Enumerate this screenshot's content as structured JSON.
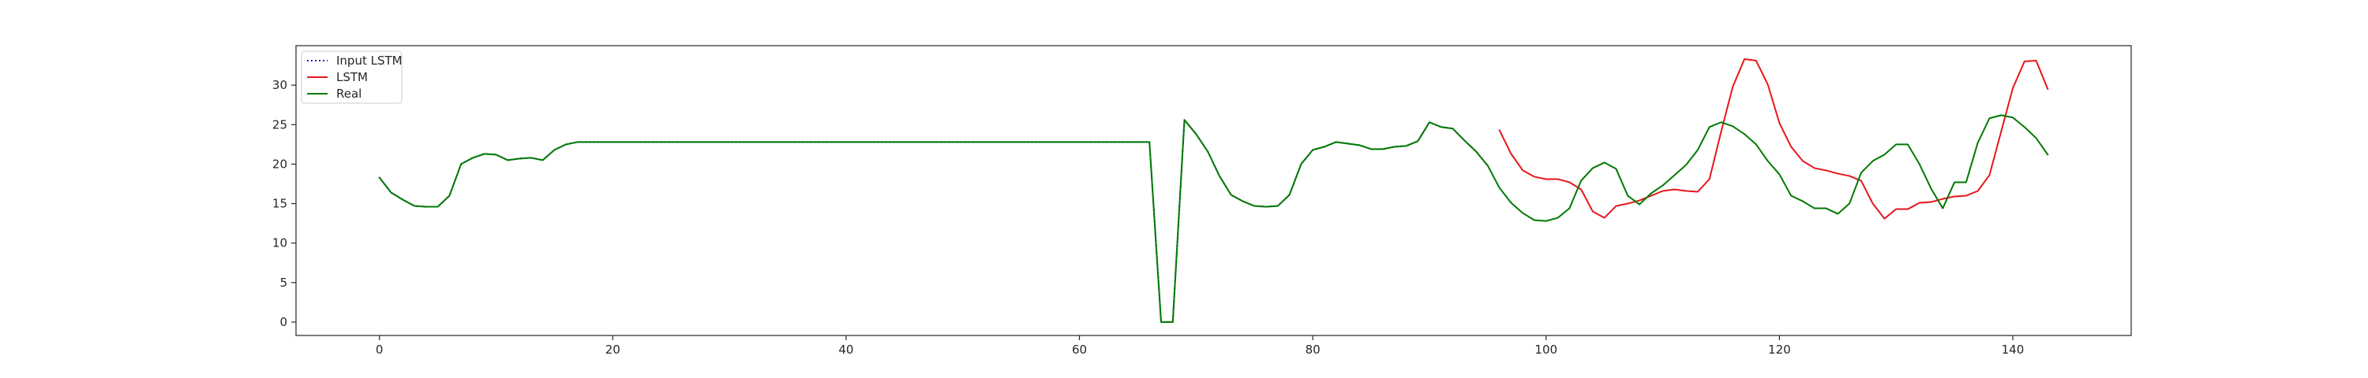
{
  "chart_data": {
    "type": "line",
    "title": "",
    "xlabel": "",
    "ylabel": "",
    "xlim": [
      -7.15,
      150.15
    ],
    "ylim": [
      -1.7,
      35.0
    ],
    "xticks": [
      0,
      20,
      40,
      60,
      80,
      100,
      120,
      140
    ],
    "yticks": [
      0,
      5,
      10,
      15,
      20,
      25,
      30
    ],
    "grid": false,
    "legend_position": "top-left",
    "series": [
      {
        "name": "Input LSTM",
        "color": "#1f1fbf",
        "style": "dotted",
        "x_start": 0,
        "values": [
          18.3,
          16.4,
          15.5,
          14.7,
          14.6,
          14.6,
          16.0,
          20.0,
          20.8,
          21.3,
          21.2,
          20.5,
          20.7,
          20.8,
          20.5,
          21.8,
          22.5,
          22.8,
          22.8,
          22.8,
          22.8,
          22.8,
          22.8,
          22.8,
          22.8,
          22.8,
          22.8,
          22.8,
          22.8,
          22.8,
          22.8,
          22.8,
          22.8,
          22.8,
          22.8,
          22.8,
          22.8,
          22.8,
          22.8,
          22.8,
          22.8,
          22.8,
          22.8,
          22.8,
          22.8,
          22.8,
          22.8,
          22.8,
          22.8,
          22.8,
          22.8,
          22.8,
          22.8,
          22.8,
          22.8,
          22.8,
          22.8,
          22.8,
          22.8,
          22.8,
          22.8,
          22.8,
          22.8,
          22.8,
          22.8,
          22.8,
          22.8,
          0.0,
          0.0,
          25.6,
          23.8,
          21.6,
          18.5,
          16.1,
          15.3,
          14.7,
          14.6,
          14.7,
          16.1,
          20.0,
          21.8,
          22.2,
          22.8,
          22.6,
          22.4,
          21.9,
          21.9,
          22.2,
          22.3,
          22.9,
          25.3,
          24.7,
          24.5,
          23.0,
          21.6,
          19.8
        ]
      },
      {
        "name": "LSTM",
        "color": "#e8161c",
        "style": "solid",
        "x_start": 96,
        "values": [
          24.3,
          21.3,
          19.2,
          18.4,
          18.1,
          18.1,
          17.7,
          16.8,
          14.0,
          13.2,
          14.7,
          15.0,
          15.4,
          16.0,
          16.6,
          16.8,
          16.6,
          16.5,
          18.1,
          24.1,
          29.8,
          33.3,
          33.1,
          30.1,
          25.2,
          22.2,
          20.4,
          19.5,
          19.2,
          18.8,
          18.5,
          17.9,
          15.0,
          13.1,
          14.3,
          14.3,
          15.1,
          15.2,
          15.6,
          15.9,
          16.0,
          16.6,
          18.6,
          24.1,
          29.6,
          33.0,
          33.1,
          29.5
        ]
      },
      {
        "name": "Real",
        "color": "#007a00",
        "style": "solid",
        "x_start": 0,
        "values": [
          18.3,
          16.4,
          15.5,
          14.7,
          14.6,
          14.6,
          16.0,
          20.0,
          20.8,
          21.3,
          21.2,
          20.5,
          20.7,
          20.8,
          20.5,
          21.8,
          22.5,
          22.8,
          22.8,
          22.8,
          22.8,
          22.8,
          22.8,
          22.8,
          22.8,
          22.8,
          22.8,
          22.8,
          22.8,
          22.8,
          22.8,
          22.8,
          22.8,
          22.8,
          22.8,
          22.8,
          22.8,
          22.8,
          22.8,
          22.8,
          22.8,
          22.8,
          22.8,
          22.8,
          22.8,
          22.8,
          22.8,
          22.8,
          22.8,
          22.8,
          22.8,
          22.8,
          22.8,
          22.8,
          22.8,
          22.8,
          22.8,
          22.8,
          22.8,
          22.8,
          22.8,
          22.8,
          22.8,
          22.8,
          22.8,
          22.8,
          22.8,
          0.0,
          0.0,
          25.6,
          23.8,
          21.6,
          18.5,
          16.1,
          15.3,
          14.7,
          14.6,
          14.7,
          16.1,
          20.0,
          21.8,
          22.2,
          22.8,
          22.6,
          22.4,
          21.9,
          21.9,
          22.2,
          22.3,
          22.9,
          25.3,
          24.7,
          24.5,
          23.0,
          21.6,
          19.8,
          17.0,
          15.1,
          13.8,
          12.9,
          12.8,
          13.2,
          14.4,
          17.9,
          19.5,
          20.2,
          19.4,
          16.0,
          14.9,
          16.3,
          17.3,
          18.6,
          19.9,
          21.8,
          24.7,
          25.3,
          24.8,
          23.8,
          22.5,
          20.4,
          18.7,
          16.0,
          15.3,
          14.4,
          14.4,
          13.7,
          15.0,
          18.9,
          20.4,
          21.2,
          22.5,
          22.5,
          20.0,
          16.9,
          14.4,
          17.7,
          17.7,
          22.7,
          25.8,
          26.2,
          25.9,
          24.7,
          23.3,
          21.2
        ]
      }
    ]
  }
}
